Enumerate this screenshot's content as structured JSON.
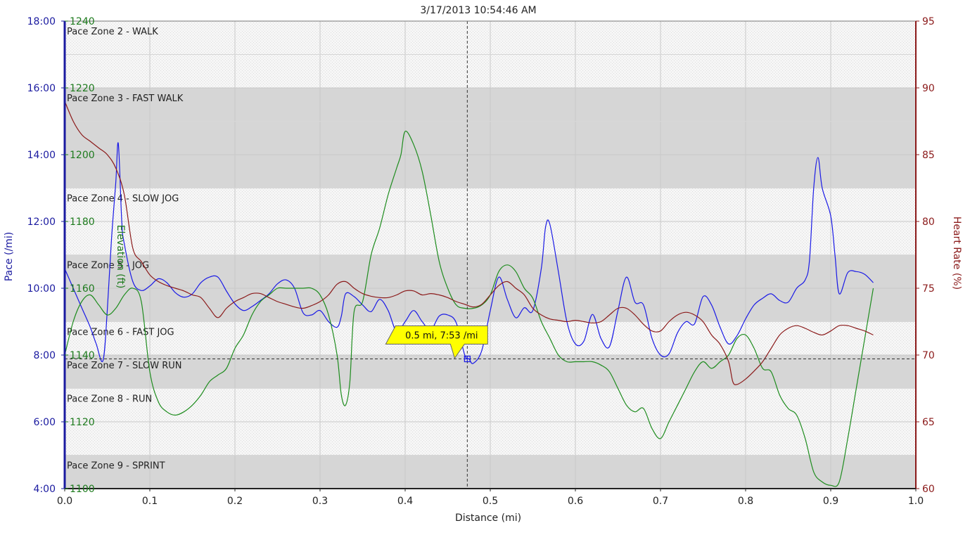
{
  "chart_data": {
    "type": "line",
    "title": "3/17/2013 10:54:46 AM",
    "xlabel": "Distance (mi)",
    "xlim": [
      0,
      1.0
    ],
    "x_ticks": [
      "0.0",
      "0.1",
      "0.2",
      "0.3",
      "0.4",
      "0.5",
      "0.6",
      "0.7",
      "0.8",
      "0.9",
      "1.0"
    ],
    "grid": true,
    "axes": {
      "pace": {
        "label": "Pace (/mi)",
        "side": "left-outer",
        "color": "#1a1aa0",
        "min_seconds": 240,
        "max_seconds": 1080,
        "ticks": [
          "4:00",
          "6:00",
          "8:00",
          "10:00",
          "12:00",
          "14:00",
          "16:00",
          "18:00"
        ]
      },
      "elevation": {
        "label": "Elevation (ft)",
        "side": "left-inner",
        "color": "#1e7b1e",
        "min": 1100,
        "max": 1240,
        "ticks": [
          "1100",
          "1120",
          "1140",
          "1160",
          "1180",
          "1200",
          "1220",
          "1240"
        ]
      },
      "heart_rate": {
        "label": "Heart Rate (%)",
        "side": "right",
        "color": "#8b1a1a",
        "min": 60,
        "max": 95,
        "ticks": [
          "60",
          "65",
          "70",
          "75",
          "80",
          "85",
          "90",
          "95"
        ]
      }
    },
    "zones": [
      {
        "label": "Pace Zone 2 - WALK",
        "from": 960,
        "to": 1080,
        "fill": "#f4f4f4"
      },
      {
        "label": "Pace Zone 3 - FAST WALK",
        "from": 780,
        "to": 960,
        "fill": "#d6d6d6"
      },
      {
        "label": "Pace Zone 4 - SLOW JOG",
        "from": 660,
        "to": 780,
        "fill": "#f4f4f4"
      },
      {
        "label": "Pace Zone 5 - JOG",
        "from": 540,
        "to": 660,
        "fill": "#d6d6d6"
      },
      {
        "label": "Pace Zone 6 - FAST JOG",
        "from": 480,
        "to": 540,
        "fill": "#f4f4f4"
      },
      {
        "label": "Pace Zone 7 - SLOW RUN",
        "from": 420,
        "to": 480,
        "fill": "#d6d6d6"
      },
      {
        "label": "Pace Zone 8 - RUN",
        "from": 300,
        "to": 420,
        "fill": "#f4f4f4"
      },
      {
        "label": "Pace Zone 9 - SPRINT",
        "from": 240,
        "to": 300,
        "fill": "#d6d6d6"
      }
    ],
    "series": [
      {
        "axis": "pace",
        "color": "#1a1ae6",
        "x": [
          0,
          0.01,
          0.02,
          0.03,
          0.037,
          0.045,
          0.05,
          0.055,
          0.06,
          0.063,
          0.067,
          0.07,
          0.08,
          0.09,
          0.1,
          0.11,
          0.12,
          0.13,
          0.14,
          0.15,
          0.16,
          0.17,
          0.18,
          0.19,
          0.2,
          0.21,
          0.22,
          0.23,
          0.24,
          0.25,
          0.26,
          0.27,
          0.28,
          0.29,
          0.3,
          0.31,
          0.32,
          0.325,
          0.33,
          0.34,
          0.35,
          0.36,
          0.37,
          0.38,
          0.39,
          0.4,
          0.41,
          0.42,
          0.43,
          0.44,
          0.45,
          0.46,
          0.47,
          0.475,
          0.48,
          0.49,
          0.5,
          0.51,
          0.52,
          0.53,
          0.54,
          0.55,
          0.56,
          0.565,
          0.57,
          0.58,
          0.59,
          0.6,
          0.61,
          0.62,
          0.63,
          0.64,
          0.65,
          0.66,
          0.67,
          0.68,
          0.69,
          0.7,
          0.71,
          0.72,
          0.73,
          0.74,
          0.75,
          0.76,
          0.77,
          0.78,
          0.79,
          0.8,
          0.81,
          0.82,
          0.83,
          0.84,
          0.85,
          0.86,
          0.87,
          0.875,
          0.88,
          0.885,
          0.89,
          0.9,
          0.905,
          0.91,
          0.92,
          0.93,
          0.94,
          0.95
        ],
        "y": [
          635,
          600,
          565,
          530,
          500,
          470,
          560,
          690,
          790,
          860,
          720,
          680,
          612,
          596,
          604,
          617,
          610,
          592,
          584,
          590,
          610,
          620,
          620,
          595,
          572,
          560,
          567,
          578,
          590,
          608,
          615,
          600,
          556,
          552,
          560,
          540,
          530,
          550,
          590,
          585,
          570,
          558,
          580,
          560,
          522,
          540,
          560,
          540,
          525,
          550,
          552,
          538,
          480,
          473,
          465,
          488,
          560,
          620,
          580,
          547,
          565,
          560,
          636,
          710,
          715,
          630,
          540,
          500,
          505,
          553,
          510,
          495,
          560,
          620,
          575,
          570,
          510,
          480,
          482,
          520,
          540,
          536,
          585,
          570,
          530,
          500,
          515,
          545,
          570,
          582,
          590,
          578,
          575,
          600,
          615,
          650,
          780,
          835,
          780,
          730,
          660,
          590,
          628,
          630,
          625,
          610
        ]
      },
      {
        "axis": "elevation",
        "color": "#1e8c1e",
        "x": [
          0,
          0.01,
          0.02,
          0.03,
          0.04,
          0.05,
          0.06,
          0.07,
          0.08,
          0.09,
          0.1,
          0.11,
          0.12,
          0.13,
          0.14,
          0.15,
          0.16,
          0.17,
          0.18,
          0.19,
          0.2,
          0.21,
          0.22,
          0.23,
          0.24,
          0.25,
          0.26,
          0.27,
          0.28,
          0.29,
          0.3,
          0.31,
          0.32,
          0.325,
          0.33,
          0.335,
          0.34,
          0.35,
          0.36,
          0.37,
          0.38,
          0.39,
          0.395,
          0.4,
          0.41,
          0.42,
          0.43,
          0.44,
          0.45,
          0.46,
          0.47,
          0.48,
          0.49,
          0.5,
          0.51,
          0.52,
          0.53,
          0.54,
          0.55,
          0.56,
          0.57,
          0.58,
          0.59,
          0.6,
          0.61,
          0.62,
          0.63,
          0.64,
          0.65,
          0.66,
          0.67,
          0.68,
          0.69,
          0.7,
          0.71,
          0.72,
          0.73,
          0.74,
          0.75,
          0.76,
          0.77,
          0.78,
          0.79,
          0.8,
          0.81,
          0.82,
          0.83,
          0.84,
          0.85,
          0.86,
          0.87,
          0.88,
          0.89,
          0.9,
          0.91,
          0.92,
          0.93,
          0.94,
          0.95
        ],
        "y": [
          1140,
          1150,
          1156,
          1158,
          1155,
          1152,
          1154,
          1158,
          1160,
          1156,
          1135,
          1126,
          1123,
          1122,
          1123,
          1125,
          1128,
          1132,
          1134,
          1136,
          1142,
          1146,
          1152,
          1156,
          1158,
          1160,
          1160,
          1160,
          1160,
          1160,
          1158,
          1152,
          1140,
          1128,
          1125,
          1132,
          1153,
          1156,
          1170,
          1178,
          1188,
          1196,
          1200,
          1207,
          1203,
          1195,
          1182,
          1168,
          1160,
          1155,
          1154,
          1154,
          1155,
          1158,
          1165,
          1167,
          1165,
          1160,
          1157,
          1150,
          1145,
          1140,
          1138,
          1138,
          1138,
          1138,
          1137,
          1135,
          1130,
          1125,
          1123,
          1124,
          1118,
          1115,
          1120,
          1125,
          1130,
          1135,
          1138,
          1136,
          1138,
          1140,
          1145,
          1146,
          1142,
          1136,
          1135,
          1128,
          1124,
          1122,
          1115,
          1105,
          1102,
          1101,
          1102,
          1115,
          1130,
          1145,
          1160
        ]
      },
      {
        "axis": "heart_rate",
        "color": "#8b1a1a",
        "x": [
          0,
          0.01,
          0.02,
          0.03,
          0.04,
          0.05,
          0.06,
          0.07,
          0.08,
          0.09,
          0.1,
          0.11,
          0.12,
          0.13,
          0.14,
          0.15,
          0.16,
          0.17,
          0.18,
          0.19,
          0.2,
          0.21,
          0.22,
          0.23,
          0.24,
          0.25,
          0.26,
          0.27,
          0.28,
          0.29,
          0.3,
          0.31,
          0.32,
          0.33,
          0.34,
          0.35,
          0.36,
          0.37,
          0.38,
          0.39,
          0.4,
          0.41,
          0.42,
          0.43,
          0.44,
          0.45,
          0.46,
          0.47,
          0.48,
          0.49,
          0.5,
          0.51,
          0.52,
          0.53,
          0.54,
          0.55,
          0.56,
          0.57,
          0.58,
          0.59,
          0.6,
          0.61,
          0.62,
          0.63,
          0.64,
          0.65,
          0.66,
          0.67,
          0.68,
          0.69,
          0.7,
          0.71,
          0.72,
          0.73,
          0.74,
          0.75,
          0.76,
          0.77,
          0.78,
          0.785,
          0.79,
          0.8,
          0.81,
          0.82,
          0.83,
          0.84,
          0.85,
          0.86,
          0.87,
          0.88,
          0.89,
          0.9,
          0.91,
          0.92,
          0.93,
          0.94,
          0.95
        ],
        "y": [
          89,
          87.5,
          86.5,
          86,
          85.5,
          85,
          84,
          82,
          78,
          77,
          76,
          75.5,
          75.2,
          75,
          74.8,
          74.5,
          74.3,
          73.5,
          72.8,
          73.5,
          74,
          74.3,
          74.6,
          74.6,
          74.3,
          74,
          73.8,
          73.6,
          73.5,
          73.7,
          74,
          74.5,
          75.3,
          75.5,
          75,
          74.6,
          74.4,
          74.3,
          74.3,
          74.5,
          74.8,
          74.8,
          74.5,
          74.6,
          74.5,
          74.3,
          74,
          73.8,
          73.6,
          73.8,
          74.5,
          75.2,
          75.5,
          75,
          74.5,
          73.5,
          73,
          72.7,
          72.6,
          72.5,
          72.6,
          72.5,
          72.4,
          72.5,
          73,
          73.5,
          73.5,
          73,
          72.3,
          71.8,
          71.8,
          72.5,
          73,
          73.2,
          73,
          72.5,
          71.5,
          70.8,
          69.5,
          68,
          67.8,
          68.2,
          68.8,
          69.5,
          70.5,
          71.5,
          72,
          72.2,
          72,
          71.7,
          71.5,
          71.8,
          72.2,
          72.2,
          72,
          71.8,
          71.5
        ]
      }
    ],
    "crosshair": {
      "x": 0.473,
      "pace_seconds": 473
    },
    "tooltip": {
      "text": "0.5 mi, 7:53 /mi"
    }
  }
}
